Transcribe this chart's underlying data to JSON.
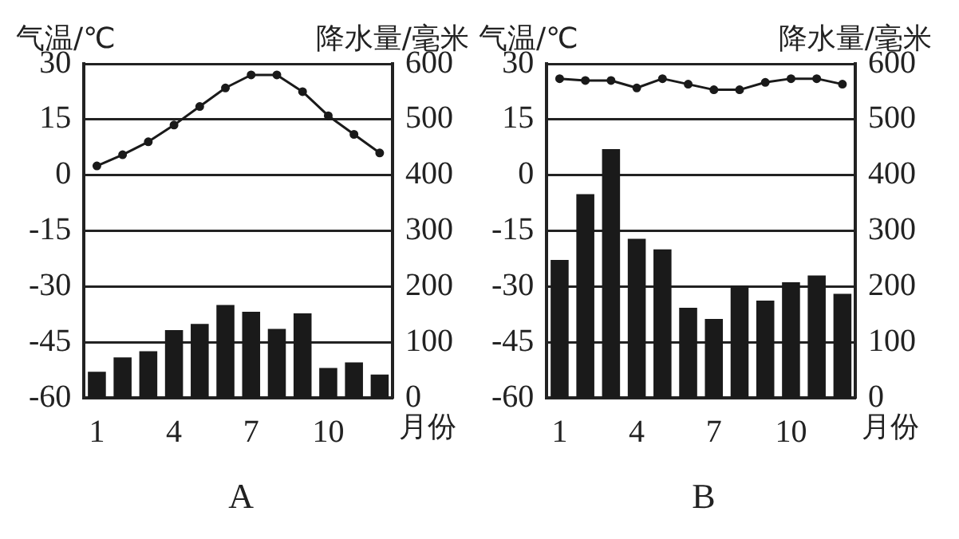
{
  "chart_data": [
    {
      "type": "bar",
      "title": "A",
      "xlabel": "月份",
      "ylabel": "气温/℃",
      "y2label": "降水量/毫米",
      "categories": [
        "1",
        null,
        null,
        "4",
        null,
        null,
        "7",
        null,
        null,
        "10",
        null,
        null
      ],
      "series": [
        {
          "axis": "y2",
          "color": "#1a1a1a",
          "values": [
            47,
            73,
            84,
            122,
            133,
            167,
            155,
            124,
            152,
            54,
            64,
            42
          ]
        },
        {
          "type": "line",
          "axis": "y",
          "color": "#1a1a1a",
          "marker": "circle",
          "line_style": "solid",
          "values": [
            2.5,
            5.5,
            9,
            13.5,
            18.5,
            23.5,
            27,
            27,
            22.5,
            16,
            11,
            6
          ]
        }
      ],
      "ylim": [
        -60,
        30
      ],
      "yticks": [
        -60,
        -45,
        -30,
        -15,
        0,
        15,
        30
      ],
      "y2lim": [
        0,
        600
      ],
      "y2ticks": [
        0,
        100,
        200,
        300,
        400,
        500,
        600
      ],
      "grid": "y",
      "legend": false
    },
    {
      "type": "bar",
      "title": "B",
      "xlabel": "月份",
      "ylabel": "气温/℃",
      "y2label": "降水量/毫米",
      "categories": [
        "1",
        null,
        null,
        "4",
        null,
        null,
        "7",
        null,
        null,
        "10",
        null,
        null
      ],
      "series": [
        {
          "axis": "y2",
          "color": "#1a1a1a",
          "values": [
            248,
            366,
            447,
            286,
            267,
            162,
            142,
            202,
            175,
            208,
            220,
            187
          ]
        },
        {
          "type": "line",
          "axis": "y",
          "color": "#1a1a1a",
          "marker": "circle",
          "line_style": "solid",
          "values": [
            26,
            25.5,
            25.5,
            23.5,
            26,
            24.5,
            23,
            23,
            25,
            26,
            26,
            24.5
          ]
        }
      ],
      "ylim": [
        -60,
        30
      ],
      "yticks": [
        -60,
        -45,
        -30,
        -15,
        0,
        15,
        30
      ],
      "y2lim": [
        0,
        600
      ],
      "y2ticks": [
        0,
        100,
        200,
        300,
        400,
        500,
        600
      ],
      "grid": "y",
      "legend": false
    }
  ]
}
